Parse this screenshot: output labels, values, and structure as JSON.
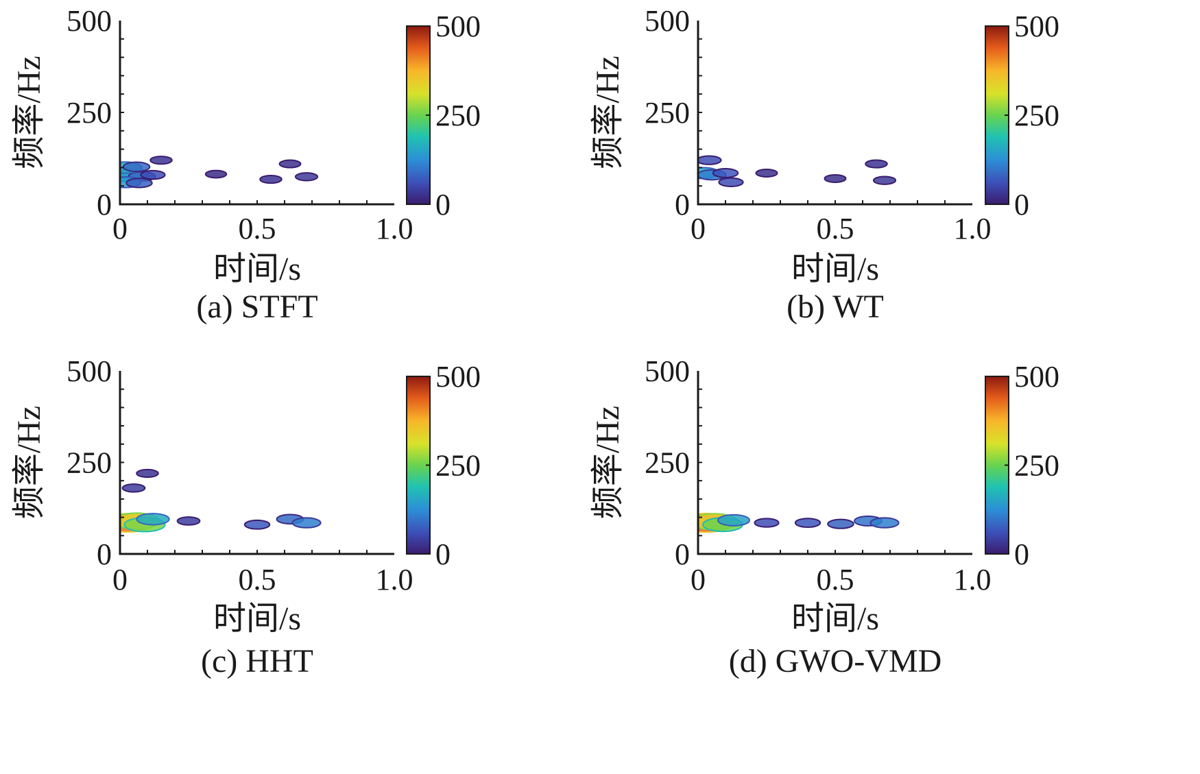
{
  "chart_data": [
    {
      "type": "heatmap",
      "caption": "(a) STFT",
      "xlabel": "时间/s",
      "ylabel": "频率/Hz",
      "xlim": [
        0,
        1.0
      ],
      "ylim": [
        0,
        500
      ],
      "x_ticks": [
        "0",
        "0.5",
        "1.0"
      ],
      "y_ticks": [
        "0",
        "250",
        "500"
      ],
      "colorbar_ticks": [
        "0",
        "250",
        "500"
      ],
      "clim": [
        0,
        500
      ],
      "colormap": [
        "#3b1c6e",
        "#3d4fb8",
        "#2c8fd6",
        "#20c3b0",
        "#69d34f",
        "#d7e22a",
        "#f8b62a",
        "#e35b1b",
        "#8c1a10"
      ],
      "points": [
        {
          "t": 0.01,
          "f": 80,
          "v": 230
        },
        {
          "t": 0.03,
          "f": 78,
          "v": 180
        },
        {
          "t": 0.05,
          "f": 82,
          "v": 140
        },
        {
          "t": 0.08,
          "f": 76,
          "v": 90
        },
        {
          "t": 0.12,
          "f": 80,
          "v": 60
        },
        {
          "t": 0.02,
          "f": 100,
          "v": 160
        },
        {
          "t": 0.06,
          "f": 102,
          "v": 90
        },
        {
          "t": 0.02,
          "f": 60,
          "v": 140
        },
        {
          "t": 0.07,
          "f": 58,
          "v": 80
        },
        {
          "t": 0.15,
          "f": 120,
          "v": 30
        },
        {
          "t": 0.35,
          "f": 82,
          "v": 20
        },
        {
          "t": 0.55,
          "f": 68,
          "v": 30
        },
        {
          "t": 0.62,
          "f": 110,
          "v": 25
        },
        {
          "t": 0.68,
          "f": 75,
          "v": 35
        }
      ]
    },
    {
      "type": "heatmap",
      "caption": "(b) WT",
      "xlabel": "时间/s",
      "ylabel": "频率/Hz",
      "xlim": [
        0,
        1.0
      ],
      "ylim": [
        0,
        500
      ],
      "x_ticks": [
        "0",
        "0.5",
        "1.0"
      ],
      "y_ticks": [
        "0",
        "250",
        "500"
      ],
      "colorbar_ticks": [
        "0",
        "250",
        "500"
      ],
      "clim": [
        0,
        500
      ],
      "colormap": [
        "#3b1c6e",
        "#3d4fb8",
        "#2c8fd6",
        "#20c3b0",
        "#69d34f",
        "#d7e22a",
        "#f8b62a",
        "#e35b1b",
        "#8c1a10"
      ],
      "points": [
        {
          "t": 0.02,
          "f": 85,
          "v": 150
        },
        {
          "t": 0.05,
          "f": 80,
          "v": 110
        },
        {
          "t": 0.1,
          "f": 85,
          "v": 70
        },
        {
          "t": 0.04,
          "f": 120,
          "v": 60
        },
        {
          "t": 0.12,
          "f": 60,
          "v": 60
        },
        {
          "t": 0.25,
          "f": 85,
          "v": 25
        },
        {
          "t": 0.5,
          "f": 70,
          "v": 25
        },
        {
          "t": 0.65,
          "f": 110,
          "v": 30
        },
        {
          "t": 0.68,
          "f": 65,
          "v": 35
        }
      ]
    },
    {
      "type": "heatmap",
      "caption": "(c) HHT",
      "xlabel": "时间/s",
      "ylabel": "频率/Hz",
      "xlim": [
        0,
        1.0
      ],
      "ylim": [
        0,
        500
      ],
      "x_ticks": [
        "0",
        "0.5",
        "1.0"
      ],
      "y_ticks": [
        "0",
        "250",
        "500"
      ],
      "colorbar_ticks": [
        "0",
        "250",
        "500"
      ],
      "clim": [
        0,
        500
      ],
      "colormap": [
        "#3b1c6e",
        "#3d4fb8",
        "#2c8fd6",
        "#20c3b0",
        "#69d34f",
        "#d7e22a",
        "#f8b62a",
        "#e35b1b",
        "#8c1a10"
      ],
      "points": [
        {
          "t": 0.03,
          "f": 85,
          "v": 420
        },
        {
          "t": 0.06,
          "f": 90,
          "v": 330
        },
        {
          "t": 0.09,
          "f": 80,
          "v": 260
        },
        {
          "t": 0.12,
          "f": 95,
          "v": 160
        },
        {
          "t": 0.05,
          "f": 180,
          "v": 40
        },
        {
          "t": 0.1,
          "f": 220,
          "v": 30
        },
        {
          "t": 0.25,
          "f": 90,
          "v": 40
        },
        {
          "t": 0.5,
          "f": 80,
          "v": 70
        },
        {
          "t": 0.62,
          "f": 95,
          "v": 90
        },
        {
          "t": 0.68,
          "f": 85,
          "v": 110
        }
      ]
    },
    {
      "type": "heatmap",
      "caption": "(d) GWO-VMD",
      "xlabel": "时间/s",
      "ylabel": "频率/Hz",
      "xlim": [
        0,
        1.0
      ],
      "ylim": [
        0,
        500
      ],
      "x_ticks": [
        "0",
        "0.5",
        "1.0"
      ],
      "y_ticks": [
        "0",
        "250",
        "500"
      ],
      "colorbar_ticks": [
        "0",
        "250",
        "500"
      ],
      "clim": [
        0,
        500
      ],
      "colormap": [
        "#3b1c6e",
        "#3d4fb8",
        "#2c8fd6",
        "#20c3b0",
        "#69d34f",
        "#d7e22a",
        "#f8b62a",
        "#e35b1b",
        "#8c1a10"
      ],
      "points": [
        {
          "t": 0.03,
          "f": 85,
          "v": 430
        },
        {
          "t": 0.06,
          "f": 88,
          "v": 340
        },
        {
          "t": 0.09,
          "f": 80,
          "v": 250
        },
        {
          "t": 0.13,
          "f": 92,
          "v": 150
        },
        {
          "t": 0.25,
          "f": 85,
          "v": 60
        },
        {
          "t": 0.4,
          "f": 85,
          "v": 70
        },
        {
          "t": 0.52,
          "f": 82,
          "v": 80
        },
        {
          "t": 0.62,
          "f": 90,
          "v": 100
        },
        {
          "t": 0.68,
          "f": 85,
          "v": 110
        }
      ]
    }
  ]
}
